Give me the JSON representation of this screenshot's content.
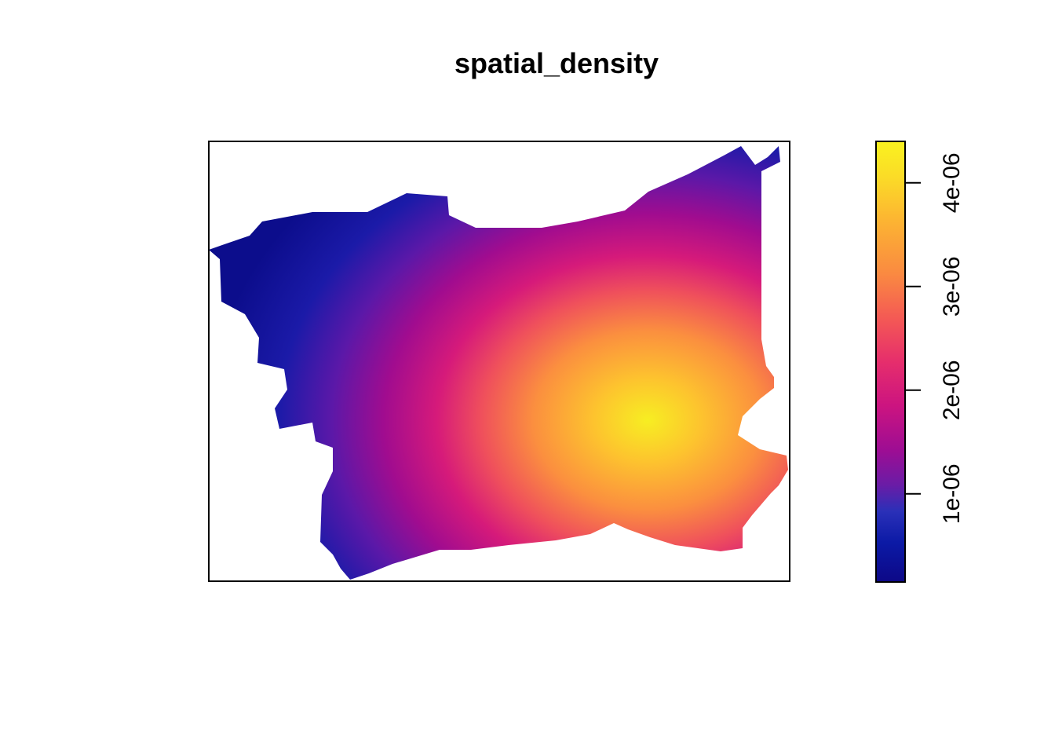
{
  "chart_data": {
    "type": "heatmap",
    "title": "spatial_density",
    "xlabel": "",
    "ylabel": "",
    "axes_shown": false,
    "legend": {
      "placement": "right",
      "type": "continuous colorbar",
      "range": [
        1.5e-07,
        4.4e-06
      ],
      "ticks": [
        {
          "value": 1e-06,
          "label": "1e-06"
        },
        {
          "value": 2e-06,
          "label": "2e-06"
        },
        {
          "value": 3e-06,
          "label": "3e-06"
        },
        {
          "value": 4e-06,
          "label": "4e-06"
        }
      ],
      "colors": [
        "#0d0887",
        "#0c1aa6",
        "#2a30b8",
        "#5a1fa8",
        "#8a1296",
        "#b5127f",
        "#d81b78",
        "#ef3f63",
        "#f9724a",
        "#fca037",
        "#fdd02a",
        "#f9f21f"
      ]
    },
    "density_peak": {
      "x_fraction": 0.75,
      "y_fraction": 0.63,
      "value": 4.4e-06
    }
  }
}
